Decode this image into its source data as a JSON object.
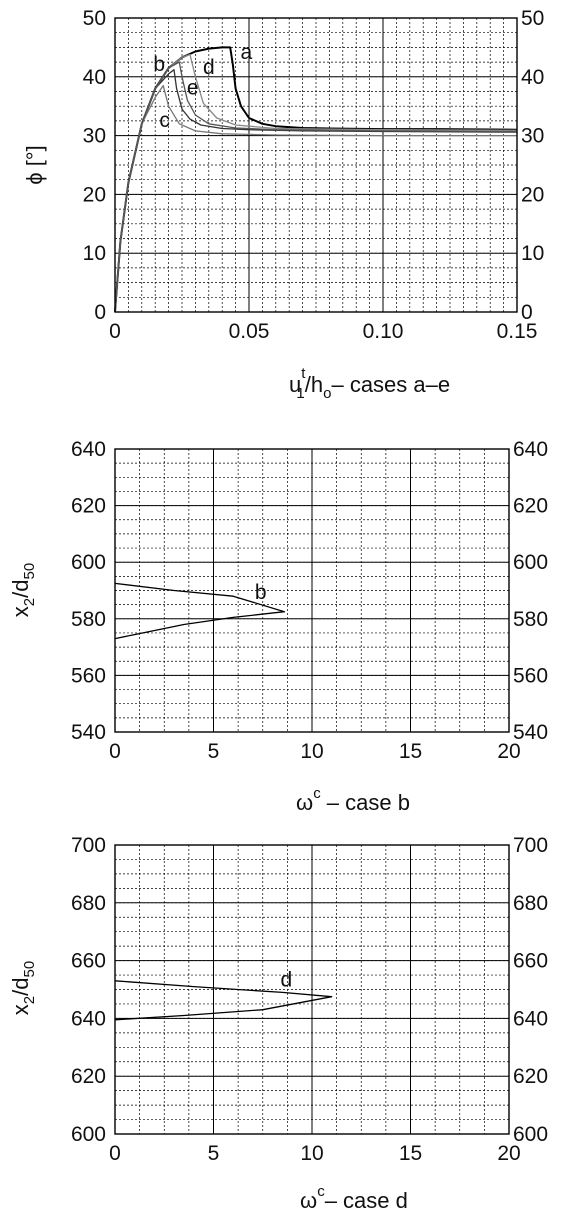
{
  "figure": {
    "background": "#ffffff",
    "grid_major_color": "#000000",
    "grid_minor_color": "#000000"
  },
  "chart_data": [
    {
      "type": "line",
      "ylabel": "ϕ [°]",
      "xlabel_parts": [
        "u",
        "t",
        "1",
        "/h",
        "o",
        "– cases a–e"
      ],
      "xlim": [
        0,
        0.15
      ],
      "ylim": [
        0,
        50
      ],
      "xticks": [
        "0",
        "0.05",
        "0.10",
        "0.15"
      ],
      "yticks": [
        "0",
        "10",
        "20",
        "30",
        "40",
        "50"
      ],
      "grid": true,
      "series": [
        {
          "name": "a",
          "color": "#000000",
          "x": [
            0,
            0.002,
            0.005,
            0.01,
            0.015,
            0.02,
            0.025,
            0.03,
            0.035,
            0.04,
            0.043,
            0.044,
            0.045,
            0.047,
            0.05,
            0.055,
            0.06,
            0.07,
            0.08,
            0.1,
            0.12,
            0.15
          ],
          "y": [
            0,
            12,
            22,
            32,
            38,
            41.5,
            43.3,
            44.3,
            44.8,
            45,
            45,
            42,
            38,
            35,
            33,
            32,
            31.6,
            31.3,
            31.2,
            31.1,
            31.1,
            31
          ]
        },
        {
          "name": "b",
          "color": "#333333",
          "x": [
            0,
            0.002,
            0.005,
            0.01,
            0.015,
            0.02,
            0.022,
            0.023,
            0.025,
            0.028,
            0.032,
            0.04,
            0.05,
            0.07,
            0.1,
            0.15
          ],
          "y": [
            0,
            12,
            22,
            32,
            38,
            40.5,
            41.2,
            38,
            34.5,
            32.8,
            31.8,
            31.2,
            31,
            30.8,
            30.7,
            30.6
          ]
        },
        {
          "name": "c",
          "color": "#777777",
          "x": [
            0,
            0.002,
            0.005,
            0.01,
            0.015,
            0.018,
            0.02,
            0.024,
            0.03,
            0.04,
            0.06,
            0.1,
            0.15
          ],
          "y": [
            0,
            12,
            22,
            32,
            36.5,
            38.5,
            35,
            32,
            30.8,
            30.3,
            30.1,
            30,
            30
          ]
        },
        {
          "name": "d",
          "color": "#888888",
          "x": [
            0,
            0.002,
            0.005,
            0.01,
            0.015,
            0.02,
            0.025,
            0.028,
            0.03,
            0.033,
            0.038,
            0.045,
            0.06,
            0.1,
            0.15
          ],
          "y": [
            0,
            12,
            22,
            32,
            38,
            41.5,
            43.3,
            43.8,
            40,
            35.5,
            33,
            31.8,
            31.2,
            31,
            30.9
          ]
        },
        {
          "name": "e",
          "color": "#555555",
          "x": [
            0,
            0.002,
            0.005,
            0.01,
            0.015,
            0.02,
            0.024,
            0.025,
            0.027,
            0.03,
            0.035,
            0.045,
            0.06,
            0.1,
            0.15
          ],
          "y": [
            0,
            12,
            22,
            32,
            38,
            41.5,
            42.5,
            40,
            36,
            33.5,
            32,
            31.3,
            31,
            30.8,
            30.7
          ]
        }
      ],
      "annotations": [
        {
          "text": "a",
          "x": 0.049,
          "y": 43
        },
        {
          "text": "b",
          "x": 0.0165,
          "y": 41
        },
        {
          "text": "c",
          "x": 0.0185,
          "y": 31.5
        },
        {
          "text": "d",
          "x": 0.035,
          "y": 40.5
        },
        {
          "text": "e",
          "x": 0.029,
          "y": 37
        }
      ]
    },
    {
      "type": "line",
      "ylabel_parts": [
        "x",
        "2",
        "/d",
        "50"
      ],
      "xlabel_parts": [
        "ω",
        "c",
        " – case b"
      ],
      "xlim": [
        0,
        20
      ],
      "ylim": [
        540,
        640
      ],
      "xticks": [
        "0",
        "5",
        "10",
        "15",
        "20"
      ],
      "yticks": [
        "540",
        "560",
        "580",
        "600",
        "620",
        "640"
      ],
      "grid": true,
      "series": [
        {
          "name": "b",
          "color": "#000000",
          "x": [
            0,
            3.0,
            6.0,
            8.6,
            6.0,
            3.5,
            0
          ],
          "y": [
            592.5,
            590,
            588,
            582.5,
            580.5,
            578,
            573
          ]
        }
      ],
      "annotations": [
        {
          "text": "b",
          "x": 7.4,
          "y": 587
        }
      ]
    },
    {
      "type": "line",
      "ylabel_parts": [
        "x",
        "2",
        "/d",
        "50"
      ],
      "xlabel_parts": [
        "ω",
        "c",
        "– case d"
      ],
      "xlim": [
        0,
        20
      ],
      "ylim": [
        600,
        700
      ],
      "xticks": [
        "0",
        "5",
        "10",
        "15",
        "20"
      ],
      "yticks": [
        "600",
        "620",
        "640",
        "660",
        "680",
        "700"
      ],
      "grid": true,
      "series": [
        {
          "name": "d",
          "color": "#000000",
          "x": [
            0,
            4.0,
            8.5,
            11.0,
            7.5,
            3.5,
            0
          ],
          "y": [
            653,
            651,
            649,
            647.5,
            643,
            641,
            639.5
          ]
        }
      ],
      "annotations": [
        {
          "text": "d",
          "x": 8.7,
          "y": 651
        }
      ]
    }
  ]
}
